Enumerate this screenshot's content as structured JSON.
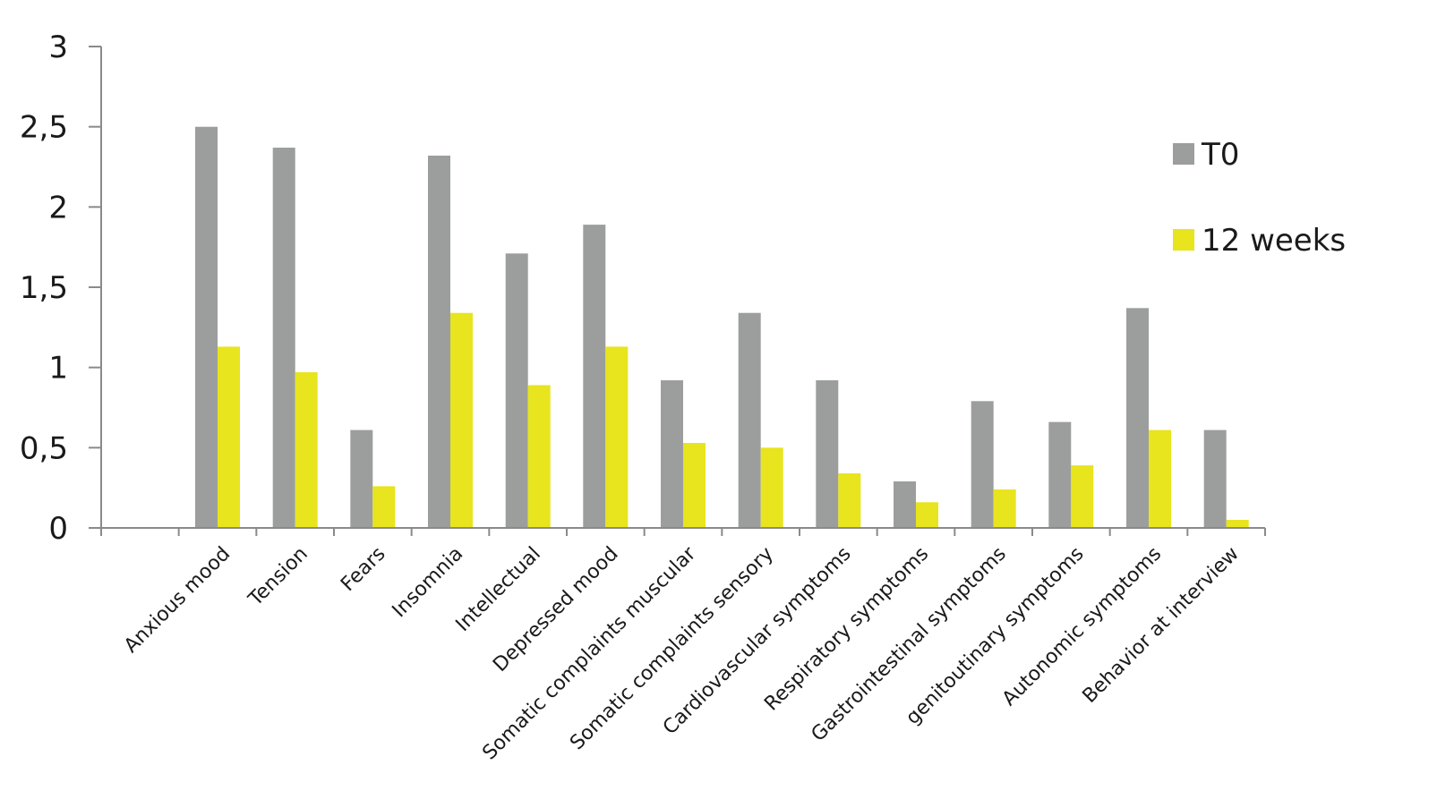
{
  "chart_data": {
    "type": "bar",
    "categories": [
      "",
      "Anxious mood",
      "Tension",
      "Fears",
      "Insomnia",
      "Intellectual",
      "Depressed mood",
      "Somatic complaints muscular",
      "Somatic complaints sensory",
      "Cardiovascular symptoms",
      "Respiratory symptoms",
      "Gastrointestinal symptoms",
      "genitoutinary symptoms",
      "Autonomic symptoms",
      "Behavior at interview"
    ],
    "series": [
      {
        "name": "T0",
        "color": "#9c9e9e",
        "values": [
          null,
          2.5,
          2.37,
          0.61,
          2.32,
          1.71,
          1.89,
          0.92,
          1.34,
          0.92,
          0.29,
          0.79,
          0.66,
          1.37,
          0.61
        ]
      },
      {
        "name": "12 weeks",
        "color": "#e8e41e",
        "values": [
          null,
          1.13,
          0.97,
          0.26,
          1.34,
          0.89,
          1.13,
          0.53,
          0.5,
          0.34,
          0.16,
          0.24,
          0.39,
          0.61,
          0.05
        ]
      }
    ],
    "yticks": [
      "0",
      "0,5",
      "1",
      "1,5",
      "2",
      "2,5",
      "3"
    ],
    "ylim": [
      0,
      3
    ],
    "grid": false,
    "legend": "right",
    "title": "",
    "xlabel": "",
    "ylabel": ""
  }
}
